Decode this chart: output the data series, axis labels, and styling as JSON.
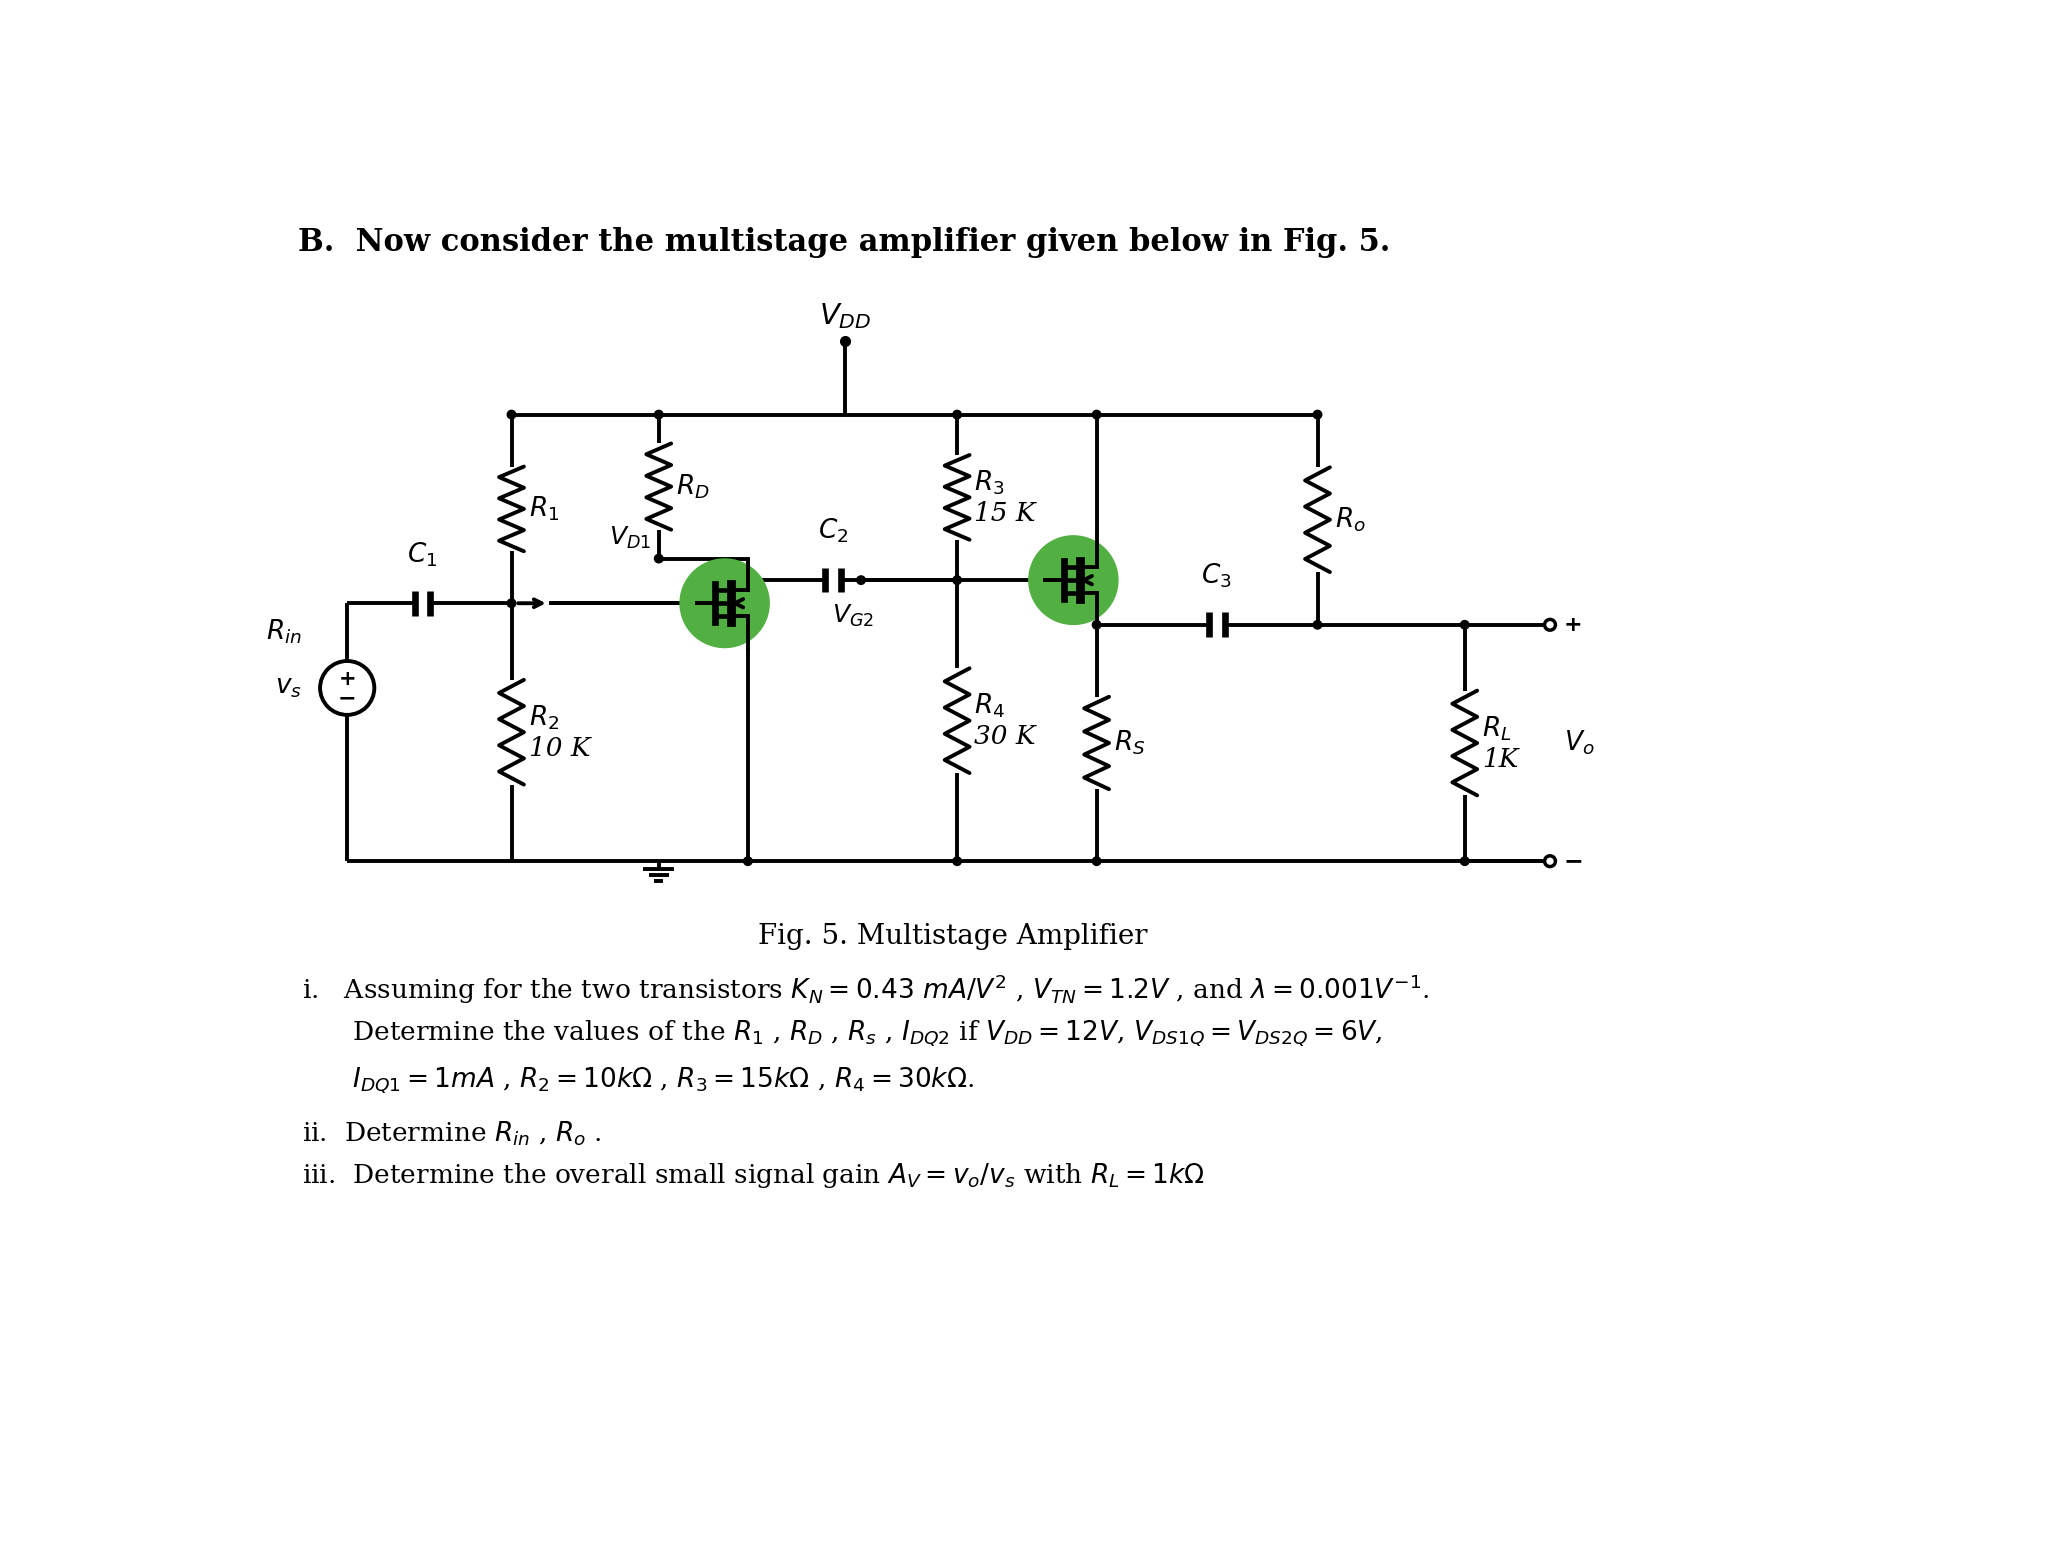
{
  "bg_color": "#ffffff",
  "line_color": "#000000",
  "green_color": "#52b043",
  "title": "B.  Now consider the multistage amplifier given below in Fig. 5.",
  "fig_caption": "Fig. 5. Multistage Amplifier",
  "VDD_label": "$V_{DD}$",
  "Vs_label": "$v_s$",
  "Rin_label": "$R_{in}$",
  "R1_label": "$R_1$",
  "R2_label": "$R_2$\n10 K",
  "RD_label": "$R_D$",
  "C1_label": "$C_1$",
  "C2_label": "$C_2$",
  "C3_label": "$C_3$",
  "VD1_label": "$V_{D1}$",
  "VG2_label": "$V_{G2}$",
  "R3_label": "$R_3$\n15 K",
  "R4_label": "$R_4$\n30 K",
  "RS_label": "$R_S$",
  "Ro_label": "$R_o$",
  "RL_label": "$R_L$\n1K",
  "Vo_label": "$V_o$",
  "q1_line1": "i.   Assuming for the two transistors $K_N = 0.43\\ mA/V^2$ , $V_{TN} = 1.2V$ , and $\\lambda = 0.001V^{-1}$.",
  "q1_line2": "      Determine the values of the $R_1$ , $R_D$ , $R_s$ , $I_{DQ2}$ if $V_{DD} = 12V$, $V_{DS1Q} = V_{DS2Q} = 6V$,",
  "q1_line3": "      $I_{DQ1} = 1mA$ , $R_2 = 10k\\Omega$ , $R_3 = 15k\\Omega$ , $R_4 = 30k\\Omega$.",
  "q2": "ii.  Determine $R_{in}$ , $R_o$ .",
  "q3": "iii.  Determine the overall small signal gain $A_V = v_o/v_s$ with $R_L = 1k\\Omega$",
  "title_fontsize": 22,
  "label_fontsize": 19,
  "caption_fontsize": 20,
  "question_fontsize": 19
}
